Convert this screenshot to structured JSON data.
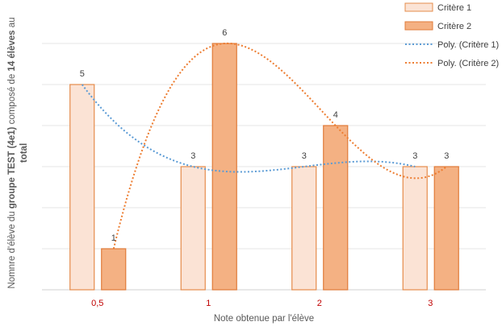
{
  "chart_data": {
    "type": "bar",
    "categories": [
      "0,5",
      "1",
      "2",
      "3"
    ],
    "series": [
      {
        "name": "Critère 1",
        "values": [
          5,
          3,
          3,
          3
        ],
        "fill": "#fbe3d5",
        "stroke": "#e58c4c"
      },
      {
        "name": "Critère 2",
        "values": [
          1,
          6,
          4,
          3
        ],
        "fill": "#f4b183",
        "stroke": "#e07b39"
      }
    ],
    "trendlines": [
      {
        "name": "Poly. (Critère 1)",
        "series": "Critère 1",
        "type": "polynomial",
        "color": "#5b9bd5"
      },
      {
        "name": "Poly. (Critère 2)",
        "series": "Critère 2",
        "type": "polynomial",
        "color": "#ed7d31"
      }
    ],
    "data_labels": [
      {
        "category": "0,5",
        "series": "Critère 1",
        "text": "5"
      },
      {
        "category": "0,5",
        "series": "Critère 2",
        "text": "1"
      },
      {
        "category": "1",
        "series": "Critère 2",
        "text": "6"
      },
      {
        "category": "1",
        "series": "Critère 1",
        "text": "3"
      },
      {
        "category": "2",
        "series": "Critère 2",
        "text": "4"
      },
      {
        "category": "2",
        "series": "Critère 1",
        "text": "3"
      },
      {
        "category": "3",
        "series": "Critère 1",
        "text": "3"
      },
      {
        "category": "3",
        "series": "Critère 2",
        "text": "3"
      }
    ],
    "xlabel": "Note obtenue par l'élève",
    "ylabel_parts": [
      {
        "text": "Nomnre d'élève du ",
        "bold": false
      },
      {
        "text": "groupe TEST (4e1)",
        "bold": true
      },
      {
        "text": " composé de ",
        "bold": false
      },
      {
        "text": "14 élèves",
        "bold": true
      },
      {
        "text": " au",
        "bold": false
      }
    ],
    "ylabel_line2": "total",
    "ylim": [
      0,
      6
    ],
    "grid": true,
    "legend_position": "top-right",
    "tick_color": "#c00000"
  }
}
